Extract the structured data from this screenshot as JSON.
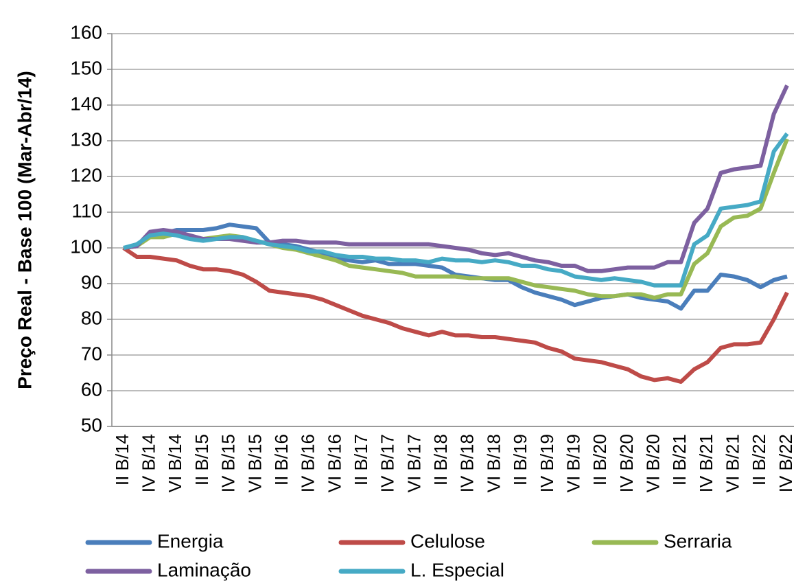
{
  "chart_data": {
    "type": "line",
    "y_axis_label": "Preço Real - Base 100 (Mar-Abr/14)",
    "categories": [
      "II B/14",
      null,
      "IV B/14",
      null,
      "VI B/14",
      null,
      "II B/15",
      null,
      "IV B/15",
      null,
      "VI B/15",
      null,
      "II B/16",
      null,
      "IV B/16",
      null,
      "VI B/16",
      null,
      "II B/17",
      null,
      "IV B/17",
      null,
      "VI B/17",
      null,
      "II B/18",
      null,
      "IV B/18",
      null,
      "VI B/18",
      null,
      "II B/19",
      null,
      "IV B/19",
      null,
      "VI B/19",
      null,
      "II B/20",
      null,
      "IV B/20",
      null,
      "VI B/20",
      null,
      "II B/21",
      null,
      "IV B/21",
      null,
      "VI B/21",
      null,
      "II B/22",
      null,
      "IV B/22"
    ],
    "series": [
      {
        "name": "Energia",
        "color": "#4a7ebb",
        "values": [
          100,
          100.5,
          104,
          104,
          105,
          105,
          105,
          105.5,
          106.5,
          106,
          105.5,
          101.5,
          101,
          100.5,
          99.5,
          98.5,
          97,
          96.5,
          96,
          96.5,
          95.5,
          95.5,
          95.5,
          95,
          94.5,
          92.5,
          92,
          91.5,
          91,
          91,
          89,
          87.5,
          86.5,
          85.5,
          84,
          85,
          86,
          86.5,
          87,
          86,
          85.5,
          85,
          83,
          88,
          88,
          92.5,
          92,
          91,
          89,
          91,
          92
        ]
      },
      {
        "name": "Celulose",
        "color": "#be4b48",
        "values": [
          100,
          97.5,
          97.5,
          97,
          96.5,
          95,
          94,
          94,
          93.5,
          92.5,
          90.5,
          88,
          87.5,
          87,
          86.5,
          85.5,
          84,
          82.5,
          81,
          80,
          79,
          77.5,
          76.5,
          75.5,
          76.5,
          75.5,
          75.5,
          75,
          75,
          74.5,
          74,
          73.5,
          72,
          71,
          69,
          68.5,
          68,
          67,
          66,
          64,
          63,
          63.5,
          62.5,
          66,
          68,
          72,
          73,
          73,
          73.5,
          80,
          87.5
        ]
      },
      {
        "name": "Serraria",
        "color": "#98b954",
        "values": [
          100,
          100.5,
          103,
          103,
          104,
          103,
          102.5,
          103,
          103.5,
          103,
          102,
          101,
          100,
          99.5,
          98.5,
          97.5,
          96.5,
          95,
          94.5,
          94,
          93.5,
          93,
          92,
          92,
          92,
          92,
          91.5,
          91.5,
          91.5,
          91.5,
          90.5,
          89.5,
          89,
          88.5,
          88,
          87,
          86.5,
          86.5,
          87,
          87,
          86,
          87,
          87,
          95.5,
          98.5,
          106,
          108.5,
          109,
          111,
          121,
          130.5
        ]
      },
      {
        "name": "Laminação",
        "color": "#7d60a0",
        "values": [
          100,
          100.5,
          104.5,
          105,
          104.5,
          103.5,
          102.5,
          102.5,
          102.5,
          102,
          101.5,
          101.5,
          102,
          102,
          101.5,
          101.5,
          101.5,
          101,
          101,
          101,
          101,
          101,
          101,
          101,
          100.5,
          100,
          99.5,
          98.5,
          98,
          98.5,
          97.5,
          96.5,
          96,
          95,
          95,
          93.5,
          93.5,
          94,
          94.5,
          94.5,
          94.5,
          96,
          96,
          107,
          111,
          121,
          122,
          122.5,
          123,
          137.5,
          145.5
        ]
      },
      {
        "name": "L. Especial",
        "color": "#46aac5",
        "values": [
          100,
          101,
          103.5,
          104,
          103.5,
          102.5,
          102,
          102.5,
          103,
          103,
          102,
          101,
          100.5,
          100,
          99,
          99,
          98,
          97.5,
          97.5,
          97,
          97,
          96.5,
          96.5,
          96,
          97,
          96.5,
          96.5,
          96,
          96.5,
          96,
          95,
          95,
          94,
          93.5,
          92,
          91.5,
          91,
          91.5,
          91,
          90.5,
          89.5,
          89.5,
          89.5,
          101,
          103.5,
          111,
          111.5,
          112,
          113,
          127,
          132
        ]
      }
    ],
    "ylim": [
      50,
      160
    ],
    "yticks": [
      50,
      60,
      70,
      80,
      90,
      100,
      110,
      120,
      130,
      140,
      150,
      160
    ],
    "grid": true,
    "legend": "bottom"
  }
}
